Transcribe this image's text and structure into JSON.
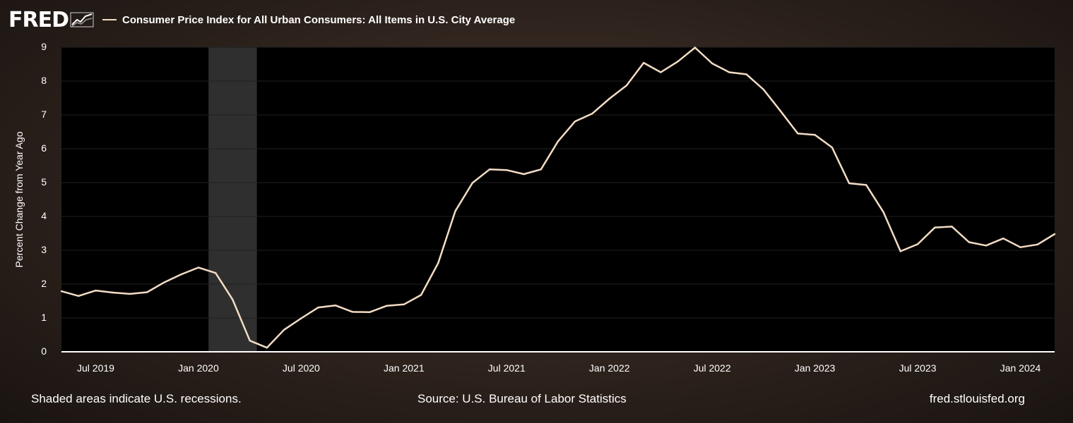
{
  "header": {
    "logo_text": "FRED",
    "logo_icon": "chart-line-icon"
  },
  "footer": {
    "note": "Shaded areas indicate U.S. recessions.",
    "source": "Source: U.S. Bureau of Labor Statistics",
    "site": "fred.stlouisfed.org"
  },
  "colors": {
    "series_line": "#f2dcc4",
    "plot_background": "#000000",
    "recession_shade": "#2f2f2f"
  },
  "chart_data": {
    "type": "line",
    "title": "",
    "xlabel": "",
    "ylabel": "Percent Change from Year Ago",
    "ylim": [
      0,
      9
    ],
    "yticks": [
      0,
      1,
      2,
      3,
      4,
      5,
      6,
      7,
      8,
      9
    ],
    "xlim": [
      "2019-05",
      "2024-03"
    ],
    "xticks": [
      {
        "date": "2019-07",
        "label": "Jul 2019"
      },
      {
        "date": "2020-01",
        "label": "Jan 2020"
      },
      {
        "date": "2020-07",
        "label": "Jul 2020"
      },
      {
        "date": "2021-01",
        "label": "Jan 2021"
      },
      {
        "date": "2021-07",
        "label": "Jul 2021"
      },
      {
        "date": "2022-01",
        "label": "Jan 2022"
      },
      {
        "date": "2022-07",
        "label": "Jul 2022"
      },
      {
        "date": "2023-01",
        "label": "Jan 2023"
      },
      {
        "date": "2023-07",
        "label": "Jul 2023"
      },
      {
        "date": "2024-01",
        "label": "Jan 2024"
      }
    ],
    "recessions": [
      {
        "start": "2020-02",
        "end": "2020-04"
      }
    ],
    "grid": true,
    "legend": "top-left",
    "series": [
      {
        "name": "Consumer Price Index for All Urban Consumers: All Items in U.S. City Average",
        "x": [
          "2019-05",
          "2019-06",
          "2019-07",
          "2019-08",
          "2019-09",
          "2019-10",
          "2019-11",
          "2019-12",
          "2020-01",
          "2020-02",
          "2020-03",
          "2020-04",
          "2020-05",
          "2020-06",
          "2020-07",
          "2020-08",
          "2020-09",
          "2020-10",
          "2020-11",
          "2020-12",
          "2021-01",
          "2021-02",
          "2021-03",
          "2021-04",
          "2021-05",
          "2021-06",
          "2021-07",
          "2021-08",
          "2021-09",
          "2021-10",
          "2021-11",
          "2021-12",
          "2022-01",
          "2022-02",
          "2022-03",
          "2022-04",
          "2022-05",
          "2022-06",
          "2022-07",
          "2022-08",
          "2022-09",
          "2022-10",
          "2022-11",
          "2022-12",
          "2023-01",
          "2023-02",
          "2023-03",
          "2023-04",
          "2023-05",
          "2023-06",
          "2023-07",
          "2023-08",
          "2023-09",
          "2023-10",
          "2023-11",
          "2023-12",
          "2024-01",
          "2024-02",
          "2024-03"
        ],
        "values": [
          1.79,
          1.65,
          1.81,
          1.75,
          1.71,
          1.76,
          2.05,
          2.29,
          2.49,
          2.33,
          1.54,
          0.33,
          0.12,
          0.65,
          0.99,
          1.31,
          1.37,
          1.18,
          1.17,
          1.36,
          1.4,
          1.68,
          2.62,
          4.16,
          4.99,
          5.39,
          5.37,
          5.25,
          5.39,
          6.22,
          6.81,
          7.04,
          7.48,
          7.87,
          8.54,
          8.26,
          8.58,
          8.99,
          8.52,
          8.26,
          8.2,
          7.75,
          7.11,
          6.45,
          6.41,
          6.04,
          4.98,
          4.93,
          4.13,
          2.97,
          3.18,
          3.67,
          3.7,
          3.24,
          3.14,
          3.35,
          3.09,
          3.17,
          3.48
        ]
      }
    ]
  }
}
